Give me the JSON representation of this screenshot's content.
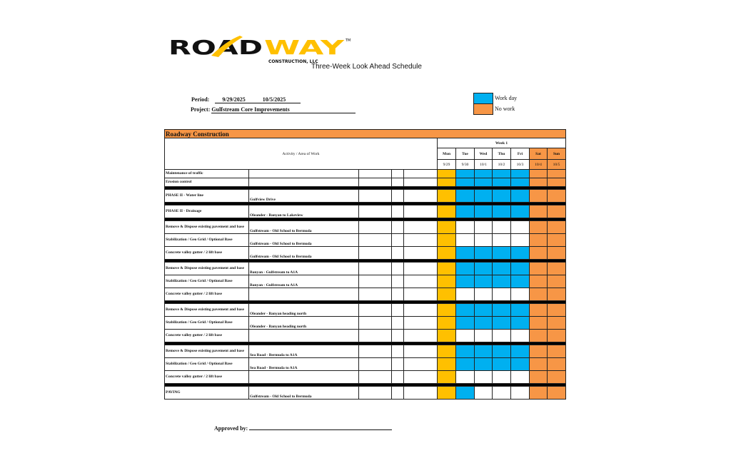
{
  "logo": {
    "text": "ROADWAY",
    "subtitle": "CONSTRUCTION, LLC",
    "tm": "TM"
  },
  "title": "Three-Week Look Ahead Schedule",
  "period": {
    "label": "Period:",
    "start": "9/29/2025",
    "end": "10/5/2025"
  },
  "project": {
    "label": "Project:",
    "value": "Gulfstream Core Improvements"
  },
  "legend": [
    {
      "label": "Work day",
      "color": "#00B0F0"
    },
    {
      "label": "No work",
      "color": "#F79646"
    }
  ],
  "colors": {
    "monday": "#FFC000",
    "work": "#00B0F0",
    "weekend": "#F79646",
    "off": "#FFFFFF"
  },
  "table": {
    "title": "Roadway Construction",
    "activity_header": "Activity / Area of Work",
    "week_label": "Week 1",
    "days": [
      "Mon",
      "Tue",
      "Wed",
      "Thu",
      "Fri",
      "Sat",
      "Sun"
    ],
    "dates": [
      "9/29",
      "9/30",
      "10/1",
      "10/2",
      "10/3",
      "10/4",
      "10/5"
    ],
    "groups": [
      [
        {
          "activity": "Maintenance of traffic",
          "area": "",
          "work": [
            1,
            1,
            1,
            1
          ]
        },
        {
          "activity": "Erosion control",
          "area": "",
          "work": [
            1,
            1,
            1,
            1
          ]
        }
      ],
      [
        {
          "activity": "PHASE II - Water line",
          "area": "Gulfview Drive",
          "work": [
            1,
            1,
            1,
            1
          ]
        }
      ],
      [
        {
          "activity": "PHASE II - Drainage",
          "area": "Oleander - Banyan to Lakeview",
          "work": [
            1,
            1,
            1,
            1
          ]
        }
      ],
      [
        {
          "activity": "Remove & Dispose existing pavement and base",
          "area": "Gulfstream - Old School to Bermuda",
          "work": [
            0,
            0,
            0,
            0
          ]
        },
        {
          "activity": "Stabilization / Geo Grid / Optional Base",
          "area": "Gulfstream - Old School to Bermuda",
          "work": [
            0,
            0,
            0,
            0
          ]
        },
        {
          "activity": "Concrete valley gutter / 2 lift base",
          "area": "Gulfstream - Old School to Bermuda",
          "work": [
            1,
            1,
            1,
            1
          ]
        }
      ],
      [
        {
          "activity": "Remove & Dispose existing pavement and base",
          "area": "Banyan - Gulfstream to A1A",
          "work": [
            1,
            1,
            1,
            1
          ]
        },
        {
          "activity": "Stabilization / Geo Grid / Optional Base",
          "area": "Banyan - Gulfstream to A1A",
          "work": [
            1,
            1,
            1,
            1
          ]
        },
        {
          "activity": "Concrete valley gutter / 2 lift base",
          "area": "",
          "work": [
            0,
            0,
            0,
            0
          ]
        }
      ],
      [
        {
          "activity": "Remove & Dispose existing pavement and base",
          "area": "Oleander - Banyan heading north",
          "work": [
            1,
            1,
            1,
            1
          ]
        },
        {
          "activity": "Stabilization / Geo Grid / Optional Base",
          "area": "Oleander - Banyan heading north",
          "work": [
            1,
            1,
            1,
            1
          ]
        },
        {
          "activity": "Concrete valley gutter / 2 lift base",
          "area": "",
          "work": [
            0,
            0,
            0,
            0
          ]
        }
      ],
      [
        {
          "activity": "Remove & Dispose existing pavement and base",
          "area": "Sea Road - Bermuda to A1A",
          "work": [
            1,
            1,
            1,
            1
          ]
        },
        {
          "activity": "Stabilization / Geo Grid / Optional Base",
          "area": "Sea Road - Bermuda to A1A",
          "work": [
            1,
            1,
            1,
            1
          ]
        },
        {
          "activity": "Concrete valley gutter / 2 lift base",
          "area": "",
          "work": [
            0,
            0,
            0,
            0
          ]
        }
      ],
      [
        {
          "activity": "PAVING",
          "area": "Gulfstream - Old School to Bermuda",
          "work": [
            1,
            0,
            0,
            0
          ]
        }
      ]
    ]
  },
  "approved": {
    "label": "Approved by:"
  }
}
